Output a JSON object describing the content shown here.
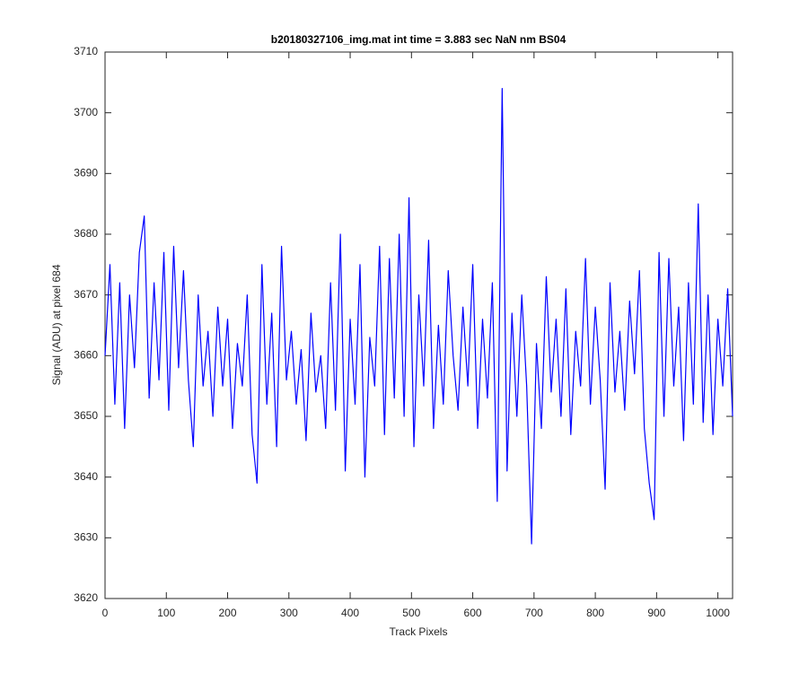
{
  "chart_data": {
    "type": "line",
    "title": "b20180327106_img.mat int time = 3.883 sec  NaN nm BS04",
    "x_label": "Track Pixels",
    "y_label": "Signal (ADU) at pixel 684",
    "x": [
      0,
      8,
      16,
      24,
      32,
      40,
      48,
      56,
      64,
      72,
      80,
      88,
      96,
      104,
      112,
      120,
      128,
      136,
      144,
      152,
      160,
      168,
      176,
      184,
      192,
      200,
      208,
      216,
      224,
      232,
      240,
      248,
      256,
      264,
      272,
      280,
      288,
      296,
      304,
      312,
      320,
      328,
      336,
      344,
      352,
      360,
      368,
      376,
      384,
      392,
      400,
      408,
      416,
      424,
      432,
      440,
      448,
      456,
      464,
      472,
      480,
      488,
      496,
      504,
      512,
      520,
      528,
      536,
      544,
      552,
      560,
      568,
      576,
      584,
      592,
      600,
      608,
      616,
      624,
      632,
      640,
      648,
      656,
      664,
      672,
      680,
      688,
      696,
      704,
      712,
      720,
      728,
      736,
      744,
      752,
      760,
      768,
      776,
      784,
      792,
      800,
      808,
      816,
      824,
      832,
      840,
      848,
      856,
      864,
      872,
      880,
      888,
      896,
      904,
      912,
      920,
      928,
      936,
      944,
      952,
      960,
      968,
      976,
      984,
      992,
      1000,
      1008,
      1016,
      1024
    ],
    "series": [
      {
        "color": "#0000ff",
        "values": [
          3660,
          3675,
          3652,
          3672,
          3648,
          3670,
          3658,
          3677,
          3683,
          3653,
          3672,
          3656,
          3677,
          3651,
          3678,
          3658,
          3674,
          3656,
          3645,
          3670,
          3655,
          3664,
          3650,
          3668,
          3655,
          3666,
          3648,
          3662,
          3655,
          3670,
          3647,
          3639,
          3675,
          3652,
          3667,
          3645,
          3678,
          3656,
          3664,
          3652,
          3661,
          3646,
          3667,
          3654,
          3660,
          3648,
          3672,
          3651,
          3680,
          3641,
          3666,
          3652,
          3675,
          3640,
          3663,
          3655,
          3678,
          3647,
          3676,
          3653,
          3680,
          3650,
          3686,
          3645,
          3670,
          3655,
          3679,
          3648,
          3665,
          3652,
          3674,
          3660,
          3651,
          3668,
          3655,
          3675,
          3648,
          3666,
          3653,
          3672,
          3636,
          3704,
          3641,
          3667,
          3650,
          3670,
          3655,
          3629,
          3662,
          3648,
          3673,
          3654,
          3666,
          3650,
          3671,
          3647,
          3664,
          3655,
          3676,
          3652,
          3668,
          3656,
          3638,
          3672,
          3654,
          3664,
          3651,
          3669,
          3657,
          3674,
          3648,
          3639,
          3633,
          3677,
          3650,
          3676,
          3655,
          3668,
          3646,
          3672,
          3652,
          3685,
          3649,
          3670,
          3647,
          3666,
          3655,
          3671,
          3650
        ]
      }
    ],
    "xlim": [
      0,
      1024
    ],
    "ylim": [
      3620,
      3710
    ],
    "xticks": [
      0,
      100,
      200,
      300,
      400,
      500,
      600,
      700,
      800,
      900,
      1000
    ],
    "yticks": [
      3620,
      3630,
      3640,
      3650,
      3660,
      3670,
      3680,
      3690,
      3700,
      3710
    ],
    "grid": false
  }
}
